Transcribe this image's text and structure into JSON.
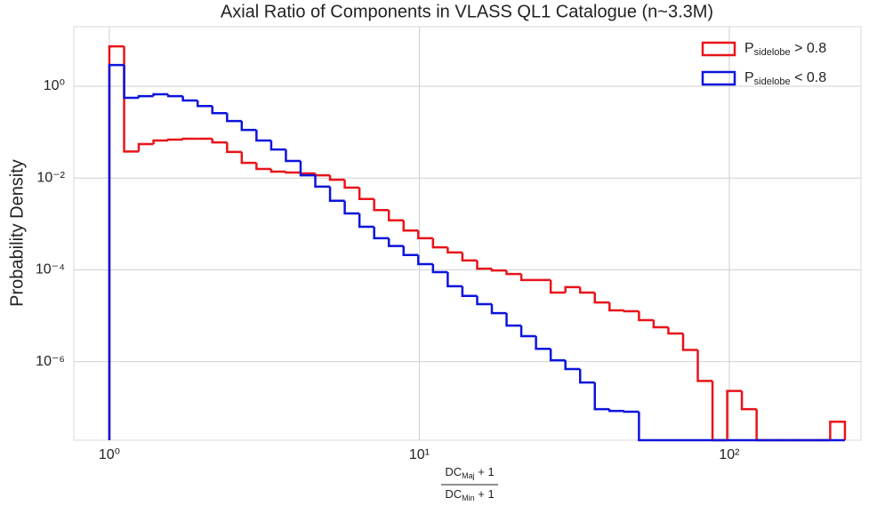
{
  "chart_data": {
    "type": "histogram",
    "title": "Axial Ratio of Components in VLASS QL1 Catalogue (n~3.3M)",
    "x_label": {
      "numerator": "DCMaj + 1",
      "denominator": "DCMin + 1"
    },
    "y_label": "Probability Density",
    "x_scale": "log",
    "y_scale": "log",
    "grid": true,
    "legend": "upper right",
    "xlim": [
      0.768,
      266
    ],
    "ylim": [
      1.94e-08,
      19.9
    ],
    "xticks": [
      {
        "value": 1,
        "label": "10⁰"
      },
      {
        "value": 10,
        "label": "10¹"
      },
      {
        "value": 100,
        "label": "10²"
      }
    ],
    "yticks": [
      {
        "value": 1,
        "label": "10⁰"
      },
      {
        "value": 0.01,
        "label": "10⁻²"
      },
      {
        "value": 0.0001,
        "label": "10⁻⁴"
      },
      {
        "value": 1e-06,
        "label": "10⁻⁶"
      }
    ],
    "bins": [
      1,
      1.116,
      1.244,
      1.388,
      1.548,
      1.727,
      1.927,
      2.149,
      2.398,
      2.674,
      2.983,
      3.328,
      3.712,
      4.14,
      4.618,
      5.152,
      5.746,
      6.41,
      7.15,
      7.975,
      8.896,
      9.924,
      11.07,
      12.35,
      13.77,
      15.37,
      17.14,
      19.12,
      21.33,
      23.79,
      26.54,
      29.6,
      33.02,
      36.83,
      41.08,
      45.83,
      51.12,
      57.02,
      63.61,
      70.96,
      79.15,
      88.29,
      98.47,
      109.8,
      122.5,
      136.7,
      152.5,
      170.1,
      189.7,
      211.6,
      236.1
    ],
    "series": [
      {
        "name": "Psidelobe > 0.8",
        "color": "#e8141a",
        "values": [
          7.4,
          0.038,
          0.055,
          0.066,
          0.069,
          0.072,
          0.072,
          0.06,
          0.037,
          0.0215,
          0.0158,
          0.0138,
          0.0132,
          0.0126,
          0.0115,
          0.0092,
          0.0062,
          0.0035,
          0.002,
          0.0012,
          0.00072,
          0.00049,
          0.00031,
          0.00024,
          0.00016,
          0.000106,
          9.7e-05,
          8.1e-05,
          6e-05,
          6e-05,
          3.2e-05,
          4.2e-05,
          3.2e-05,
          1.95e-05,
          1.31e-05,
          1.25e-05,
          8e-06,
          5.6e-06,
          4.1e-06,
          1.8e-06,
          3.8e-07,
          0,
          2.3e-07,
          9.2e-08,
          0,
          0,
          0,
          0,
          0,
          4.9e-08
        ]
      },
      {
        "name": "Psidelobe < 0.8",
        "color": "#0d14dc",
        "values": [
          2.9,
          0.56,
          0.61,
          0.67,
          0.61,
          0.49,
          0.37,
          0.26,
          0.175,
          0.112,
          0.066,
          0.042,
          0.0236,
          0.0115,
          0.0065,
          0.0032,
          0.0017,
          0.00087,
          0.00049,
          0.00033,
          0.00021,
          0.000133,
          8.9e-05,
          4.4e-05,
          2.7e-05,
          1.79e-05,
          1.14e-05,
          6.1e-06,
          3.6e-06,
          1.9e-06,
          1.07e-06,
          6.9e-07,
          3.5e-07,
          9.2e-08,
          8.4e-08,
          8.1e-08,
          0,
          0,
          0,
          0,
          0,
          0,
          0,
          0,
          0,
          0,
          0,
          0,
          0,
          0
        ]
      }
    ]
  }
}
